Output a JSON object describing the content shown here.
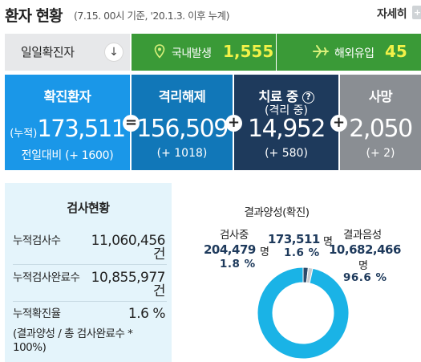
{
  "header": {
    "title": "환자 현황",
    "subtitle": "(7.15. 00시 기준, '20.1.3. 이후 누계)",
    "more_label": "자세히",
    "more_icon": "plus-icon"
  },
  "daily": {
    "label": "일일확진자",
    "toggle_icon": "arrow-down-icon",
    "domestic": {
      "icon": "map-pin-icon",
      "label": "국내발생",
      "value": "1,555"
    },
    "overseas": {
      "icon": "airplane-icon",
      "label": "해외유입",
      "value": "45"
    }
  },
  "stats": {
    "confirmed": {
      "label": "확진환자",
      "prefix": "(누적)",
      "value": "173,511",
      "change": "전일대비 (+ 1600)"
    },
    "released": {
      "label": "격리해제",
      "value": "156,509",
      "change": "(+ 1018)"
    },
    "treating": {
      "label": "치료 중",
      "sublabel": "(격리 중)",
      "help": "?",
      "value": "14,952",
      "change": "(+ 580)"
    },
    "deaths": {
      "label": "사망",
      "value": "2,050",
      "change": "(+ 2)"
    },
    "op_equals": "=",
    "op_plus": "+"
  },
  "tests": {
    "title": "검사현황",
    "rows": [
      {
        "label": "누적검사수",
        "value": "11,060,456",
        "unit": "건"
      },
      {
        "label": "누적검사완료수",
        "value": "10,855,977",
        "unit": "건"
      },
      {
        "label": "누적확진율",
        "value": "1.6 %",
        "unit": ""
      }
    ],
    "note": "(결과양성 / 총 검사완료수 * 100%)"
  },
  "pie": {
    "testing": {
      "label": "검사중",
      "value": "204,479",
      "unit": "명",
      "percent": "1.8 %"
    },
    "positive": {
      "label": "결과양성(확진)",
      "value": "173,511",
      "unit": "명",
      "percent": "1.6 %"
    },
    "negative": {
      "label": "결과음성",
      "value": "10,682,466",
      "unit": "명",
      "percent": "96.6 %"
    }
  },
  "chart_data": {
    "type": "pie",
    "categories": [
      "검사중",
      "결과양성(확진)",
      "결과음성"
    ],
    "values": [
      1.8,
      1.6,
      96.6
    ],
    "counts": [
      204479,
      173511,
      10682466
    ],
    "colors": [
      "#2b4a6a",
      "#c9ccd0",
      "#1ab3e6"
    ],
    "donut": true
  }
}
